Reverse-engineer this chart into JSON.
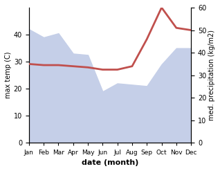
{
  "months": [
    "Jan",
    "Feb",
    "Mar",
    "Apr",
    "May",
    "Jun",
    "Jul",
    "Aug",
    "Sep",
    "Oct",
    "Nov",
    "Dec"
  ],
  "max_temp": [
    42,
    39,
    40.5,
    33,
    32.5,
    19,
    22,
    21.5,
    21,
    29,
    35,
    35
  ],
  "precipitation": [
    35,
    34.5,
    34.5,
    34,
    33.5,
    32.5,
    32.5,
    34,
    46,
    60,
    51,
    50
  ],
  "temp_fill_color": "#c5cfe8",
  "temp_line_color": "#c5cfe8",
  "precip_color": "#c0504d",
  "xlabel": "date (month)",
  "ylabel_left": "max temp (C)",
  "ylabel_right": "med. precipitation (kg/m2)",
  "ylim_left": [
    0,
    50
  ],
  "ylim_right": [
    0,
    60
  ],
  "yticks_left": [
    0,
    10,
    20,
    30,
    40
  ],
  "yticks_right": [
    0,
    10,
    20,
    30,
    40,
    50,
    60
  ],
  "background_color": "#ffffff"
}
